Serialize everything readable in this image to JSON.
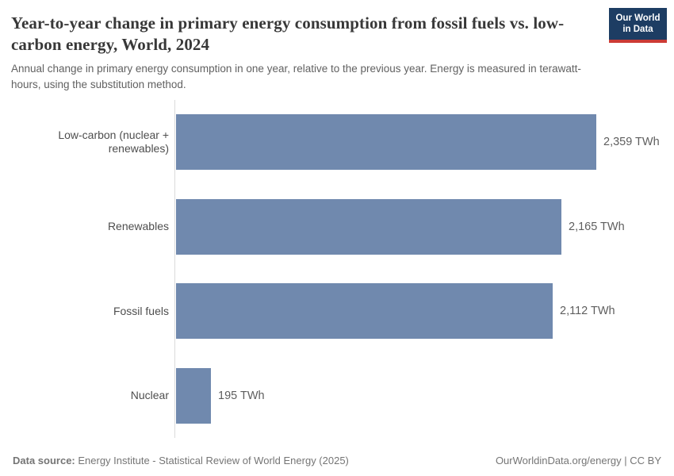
{
  "header": {
    "title": "Year-to-year change in primary energy consumption from fossil fuels vs. low-carbon energy, World, 2024",
    "subtitle": "Annual change in primary energy consumption in one year, relative to the previous year. Energy is measured in terawatt-hours, using the substitution method.",
    "logo": {
      "line1": "Our World",
      "line2": "in Data"
    }
  },
  "chart_data": {
    "type": "bar",
    "orientation": "horizontal",
    "title": "Year-to-year change in primary energy consumption from fossil fuels vs. low-carbon energy, World, 2024",
    "categories": [
      "Low-carbon (nuclear + renewables)",
      "Renewables",
      "Fossil fuels",
      "Nuclear"
    ],
    "values": [
      2359,
      2165,
      2112,
      195
    ],
    "value_labels": [
      "2,359 TWh",
      "2,165 TWh",
      "2,112 TWh",
      "195 TWh"
    ],
    "unit": "TWh",
    "xlim": [
      0,
      2359
    ],
    "bar_color": "#7089ae",
    "axis_line_color": "#dadada",
    "grid": false,
    "legend": "none"
  },
  "footer": {
    "datasource_label": "Data source:",
    "datasource_text": " Energy Institute - Statistical Review of World Energy (2025)",
    "attribution": "OurWorldinData.org/energy | CC BY"
  },
  "colors": {
    "logo_bg": "#1d3d63",
    "logo_accent": "#cc3b35",
    "title_text": "#383838",
    "subtitle_text": "#616161"
  }
}
